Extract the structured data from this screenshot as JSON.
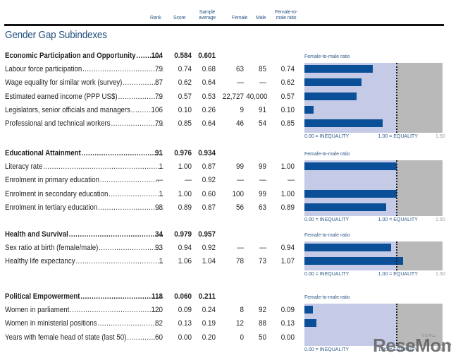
{
  "columns": {
    "rank": "Rank",
    "score": "Score",
    "sample_average_line1": "Sample",
    "sample_average_line2": "average",
    "female": "Female",
    "male": "Male",
    "ratio_line1": "Female-to-",
    "ratio_line2": "male ratio"
  },
  "title": "Gender Gap Subindexes",
  "chart_axis": {
    "title": "Female-to-male ratio",
    "min_label": "0.00 = INEQUALITY",
    "eq_label": "1.00 = EQUALITY",
    "max_label": "1.50",
    "min": 0,
    "equality": 1.0,
    "max": 1.5
  },
  "sections": [
    {
      "name": "Economic Participation and Opportunity",
      "dots": "...........",
      "rank": "104",
      "score": "0.584",
      "avg": "0.601",
      "rows": [
        {
          "name": "Labour force participation",
          "dots": "........................................",
          "rank": "79",
          "score": "0.74",
          "avg": "0.68",
          "female": "63",
          "male": "85",
          "ratio": "0.74",
          "value": 0.74
        },
        {
          "name": "Wage equality for similar work (survey)",
          "dots": "................",
          "rank": "87",
          "score": "0.62",
          "avg": "0.64",
          "female": "—",
          "male": "—",
          "ratio": "0.62",
          "value": 0.62
        },
        {
          "name": "Estimated earned income (PPP US$)",
          "dots": "........................",
          "rank": "79",
          "score": "0.57",
          "avg": "0.53",
          "female": "22,727",
          "male": "40,000",
          "ratio": "0.57",
          "value": 0.57
        },
        {
          "name": "Legislators, senior officials and managers",
          "dots": "..........",
          "rank": "106",
          "score": "0.10",
          "avg": "0.26",
          "female": "9",
          "male": "91",
          "ratio": "0.10",
          "value": 0.1
        },
        {
          "name": "Professional and technical workers",
          "dots": "........................",
          "rank": "79",
          "score": "0.85",
          "avg": "0.64",
          "female": "46",
          "male": "54",
          "ratio": "0.85",
          "value": 0.85
        }
      ]
    },
    {
      "name": "Educational Attainment",
      "dots": "........................................",
      "rank": "91",
      "score": "0.976",
      "avg": "0.934",
      "rows": [
        {
          "name": "Literacy rate",
          "dots": ".......................................................",
          "rank": "1",
          "score": "1.00",
          "avg": "0.87",
          "female": "99",
          "male": "99",
          "ratio": "1.00",
          "value": 1.0
        },
        {
          "name": "Enrolment in primary education",
          "dots": "...........................",
          "rank": "—",
          "score": "—",
          "avg": "0.92",
          "female": "—",
          "male": "—",
          "ratio": "—",
          "value": null
        },
        {
          "name": "Enrolment in secondary education",
          "dots": ".........................",
          "rank": "1",
          "score": "1.00",
          "avg": "0.60",
          "female": "100",
          "male": "99",
          "ratio": "1.00",
          "value": 1.0
        },
        {
          "name": "Enrolment in tertiary education",
          "dots": "...............................",
          "rank": "98",
          "score": "0.89",
          "avg": "0.87",
          "female": "56",
          "male": "63",
          "ratio": "0.89",
          "value": 0.89
        }
      ]
    },
    {
      "name": "Health and Survival",
      "dots": ".............................................",
      "rank": "34",
      "score": "0.979",
      "avg": "0.957",
      "rows": [
        {
          "name": "Sex ratio at birth (female/male)",
          "dots": "............................",
          "rank": "93",
          "score": "0.94",
          "avg": "0.92",
          "female": "—",
          "male": "—",
          "ratio": "0.94",
          "value": 0.94
        },
        {
          "name": "Healthy life expectancy",
          "dots": "............................................",
          "rank": "1",
          "score": "1.06",
          "avg": "1.04",
          "female": "78",
          "male": "73",
          "ratio": "1.07",
          "value": 1.07
        }
      ]
    },
    {
      "name": "Political Empowerment",
      "dots": "......................................",
      "rank": "118",
      "score": "0.060",
      "avg": "0.211",
      "rows": [
        {
          "name": "Women in parliament",
          "dots": "...........................................",
          "rank": "120",
          "score": "0.09",
          "avg": "0.24",
          "female": "8",
          "male": "92",
          "ratio": "0.09",
          "value": 0.09
        },
        {
          "name": "Women in ministerial positions",
          "dots": "...........................",
          "rank": "82",
          "score": "0.13",
          "avg": "0.19",
          "female": "12",
          "male": "88",
          "ratio": "0.13",
          "value": 0.13
        },
        {
          "name": "Years with female head of state (last 50)",
          "dots": ".............",
          "rank": "60",
          "score": "0.00",
          "avg": "0.20",
          "female": "0",
          "male": "50",
          "ratio": "0.00",
          "value": 0.0
        }
      ]
    }
  ],
  "watermark": {
    "text": "ReseMom",
    "small": "リセマム"
  },
  "colors": {
    "bar": "#0b4f98",
    "plot_bg": "#c5cbe6",
    "beyond_equality": "#b9b9b9",
    "heading_blue": "#1f4e7e"
  },
  "chart_data": [
    {
      "type": "bar",
      "title": "Economic Participation and Opportunity — Female-to-male ratio",
      "categories": [
        "Labour force participation",
        "Wage equality for similar work (survey)",
        "Estimated earned income (PPP US$)",
        "Legislators, senior officials and managers",
        "Professional and technical workers"
      ],
      "values": [
        0.74,
        0.62,
        0.57,
        0.1,
        0.85
      ],
      "xlabel": "Female-to-male ratio",
      "xlim": [
        0,
        1.5
      ],
      "orientation": "horizontal",
      "annotations": [
        "0.00 = INEQUALITY",
        "1.00 = EQUALITY",
        "1.50"
      ]
    },
    {
      "type": "bar",
      "title": "Educational Attainment — Female-to-male ratio",
      "categories": [
        "Literacy rate",
        "Enrolment in primary education",
        "Enrolment in secondary education",
        "Enrolment in tertiary education"
      ],
      "values": [
        1.0,
        null,
        1.0,
        0.89
      ],
      "xlabel": "Female-to-male ratio",
      "xlim": [
        0,
        1.5
      ],
      "orientation": "horizontal",
      "annotations": [
        "0.00 = INEQUALITY",
        "1.00 = EQUALITY",
        "1.50"
      ]
    },
    {
      "type": "bar",
      "title": "Health and Survival — Female-to-male ratio",
      "categories": [
        "Sex ratio at birth (female/male)",
        "Healthy life expectancy"
      ],
      "values": [
        0.94,
        1.07
      ],
      "xlabel": "Female-to-male ratio",
      "xlim": [
        0,
        1.5
      ],
      "orientation": "horizontal",
      "annotations": [
        "0.00 = INEQUALITY",
        "1.00 = EQUALITY",
        "1.50"
      ]
    },
    {
      "type": "bar",
      "title": "Political Empowerment — Female-to-male ratio",
      "categories": [
        "Women in parliament",
        "Women in ministerial positions",
        "Years with female head of state (last 50)"
      ],
      "values": [
        0.09,
        0.13,
        0.0
      ],
      "xlabel": "Female-to-male ratio",
      "xlim": [
        0,
        1.5
      ],
      "orientation": "horizontal",
      "annotations": [
        "0.00 = INEQUALITY",
        "1.00 = EQUALITY",
        "1.50"
      ]
    }
  ]
}
